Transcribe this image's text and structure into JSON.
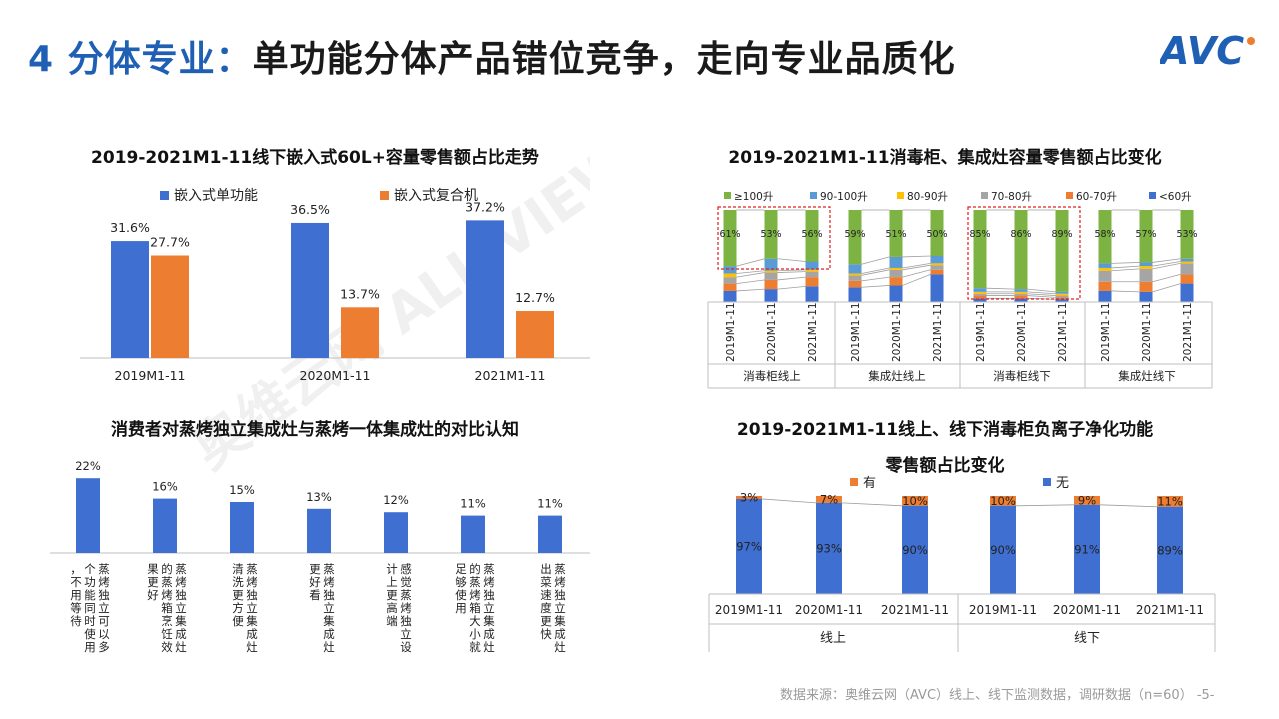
{
  "page": {
    "title_prefix": "4 分体专业：",
    "title_rest": "单功能分体产品错位竞争，走向专业品质化",
    "logo": "AVC",
    "footer": "数据来源：奥维云网（AVC）线上、线下监测数据，调研数据（n=60） -5-",
    "watermark": "奥维云网 ALL VIEW CLOUD",
    "colors": {
      "blue": "#3f6fd1",
      "orange": "#ed7d31",
      "green": "#7cb342",
      "lightblue": "#5b9bd5",
      "yellow": "#ffc000",
      "gray": "#a5a5a5",
      "title_blue": "#1f5fb4"
    }
  },
  "chart_data": [
    {
      "id": "c1",
      "type": "bar",
      "title": "2019-2021M1-11线下嵌入式60L+容量零售额占比走势",
      "categories": [
        "2019M1-11",
        "2020M1-11",
        "2021M1-11"
      ],
      "series": [
        {
          "name": "嵌入式单功能",
          "values": [
            31.6,
            36.5,
            37.2
          ],
          "labels": [
            "31.6%",
            "36.5%",
            "37.2%"
          ],
          "color": "#3f6fd1"
        },
        {
          "name": "嵌入式复合机",
          "values": [
            27.7,
            13.7,
            12.7
          ],
          "labels": [
            "27.7%",
            "13.7%",
            "12.7%"
          ],
          "color": "#ed7d31"
        }
      ],
      "ylim": [
        0,
        40
      ],
      "legend": "top"
    },
    {
      "id": "c2",
      "type": "bar",
      "stacked": true,
      "title": "2019-2021M1-11消毒柜、集成灶容量零售额占比变化",
      "legend_items": [
        {
          "name": "≥100升",
          "color": "#7cb342"
        },
        {
          "name": "90-100升",
          "color": "#5b9bd5"
        },
        {
          "name": "80-90升",
          "color": "#ffc000"
        },
        {
          "name": "70-80升",
          "color": "#a5a5a5"
        },
        {
          "name": "60-70升",
          "color": "#ed7d31"
        },
        {
          "name": "<60升",
          "color": "#3f6fd1"
        }
      ],
      "groups": [
        {
          "name": "消毒柜线上",
          "years": [
            "2019M1-11",
            "2020M1-11",
            "2021M1-11"
          ],
          "top_labels": [
            "61%",
            "53%",
            "56%"
          ]
        },
        {
          "name": "集成灶线上",
          "years": [
            "2019M1-11",
            "2020M1-11",
            "2021M1-11"
          ],
          "top_labels": [
            "59%",
            "51%",
            "50%"
          ]
        },
        {
          "name": "消毒柜线下",
          "years": [
            "2019M1-11",
            "2020M1-11",
            "2021M1-11"
          ],
          "top_labels": [
            "85%",
            "86%",
            "89%"
          ]
        },
        {
          "name": "集成灶线下",
          "years": [
            "2019M1-11",
            "2020M1-11",
            "2021M1-11"
          ],
          "top_labels": [
            "58%",
            "57%",
            "53%"
          ]
        }
      ],
      "stacks": [
        [
          61,
          8,
          4,
          7,
          8,
          12
        ],
        [
          53,
          13,
          2,
          8,
          10,
          14
        ],
        [
          56,
          9,
          2,
          6,
          10,
          17
        ],
        [
          59,
          10,
          2,
          6,
          7,
          16
        ],
        [
          51,
          12,
          2,
          8,
          9,
          18
        ],
        [
          50,
          8,
          2,
          5,
          5,
          30
        ],
        [
          85,
          4,
          2,
          2,
          3,
          4
        ],
        [
          86,
          3,
          2,
          2,
          3,
          4
        ],
        [
          89,
          2,
          2,
          2,
          2,
          3
        ],
        [
          58,
          5,
          3,
          12,
          10,
          12
        ],
        [
          57,
          4,
          3,
          14,
          11,
          11
        ],
        [
          53,
          3,
          2,
          12,
          10,
          20
        ]
      ],
      "highlight_groups": [
        "消毒柜线上",
        "消毒柜线下"
      ],
      "legend": "top"
    },
    {
      "id": "c3",
      "type": "bar",
      "title": "消费者对蒸烤独立集成灶与蒸烤一体集成灶的对比认知",
      "categories": [
        "蒸烤独立可以多个功能同时使用，不用等待",
        "蒸烤独立集成灶的蒸烤箱烹饪效果更好",
        "蒸烤独立集成灶清洗更方便",
        "蒸烤独立集成灶更好看",
        "感觉蒸烤独立设计上更高端",
        "蒸烤独立集成灶的蒸烤箱大小就足够使用",
        "蒸烤独立集成灶出菜速度更快"
      ],
      "values": [
        22,
        16,
        15,
        13,
        12,
        11,
        11
      ],
      "labels": [
        "22%",
        "16%",
        "15%",
        "13%",
        "12%",
        "11%",
        "11%"
      ],
      "ylim": [
        0,
        25
      ]
    },
    {
      "id": "c4",
      "type": "bar",
      "stacked": true,
      "title": "2019-2021M1-11线上、线下消毒柜负离子净化功能",
      "title2": "零售额占比变化",
      "legend_items": [
        {
          "name": "有",
          "color": "#ed7d31"
        },
        {
          "name": "无",
          "color": "#3f6fd1"
        }
      ],
      "groups": [
        {
          "name": "线上",
          "years": [
            "2019M1-11",
            "2020M1-11",
            "2021M1-11"
          ],
          "you": [
            3,
            7,
            10
          ],
          "wu": [
            97,
            93,
            90
          ]
        },
        {
          "name": "线下",
          "years": [
            "2019M1-11",
            "2020M1-11",
            "2021M1-11"
          ],
          "you": [
            10,
            9,
            11
          ],
          "wu": [
            90,
            91,
            89
          ]
        }
      ],
      "pct_suffix": "%"
    }
  ]
}
